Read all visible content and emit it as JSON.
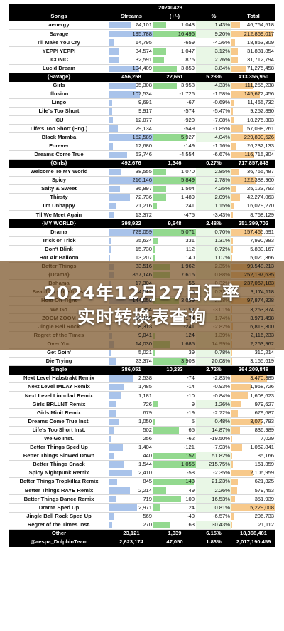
{
  "header": {
    "date": "20240428",
    "col_song": "Songs",
    "col_streams": "Streams",
    "col_change": "(+/-)",
    "col_pct": "%",
    "col_total": "Total"
  },
  "colors": {
    "header_bg": "#000000",
    "streams_bar": "#a9c3ea",
    "change_bar": "#93d98f",
    "total_bar": "#f7c98b"
  },
  "banner": {
    "line1": "2024年12月27日汇率",
    "line2": "实时转换表查询"
  },
  "rows": [
    {
      "kind": "song",
      "song": "aenergy",
      "streams": "74,101",
      "change": "1,043",
      "pct": "1.43%",
      "total": "46,764,518",
      "sv": 0.5,
      "cv": 0.3,
      "tv": 0.2
    },
    {
      "kind": "song",
      "song": "Savage",
      "streams": "195,788",
      "change": "16,496",
      "pct": "9.20%",
      "total": "212,869,017",
      "sv": 1.0,
      "cv": 1.0,
      "tv": 0.95
    },
    {
      "kind": "song",
      "song": "I'll Make You Cry",
      "streams": "14,795",
      "change": "-659",
      "pct": "-4.26%",
      "total": "18,853,309",
      "sv": 0.1,
      "cv": 0,
      "tv": 0.08
    },
    {
      "kind": "song",
      "song": "YEPPI YEPPI",
      "streams": "34,574",
      "change": "1,047",
      "pct": "3.12%",
      "total": "31,881,854",
      "sv": 0.22,
      "cv": 0.3,
      "tv": 0.14
    },
    {
      "kind": "song",
      "song": "ICONIC",
      "streams": "32,591",
      "change": "875",
      "pct": "2.76%",
      "total": "31,712,794",
      "sv": 0.21,
      "cv": 0.25,
      "tv": 0.14
    },
    {
      "kind": "song",
      "song": "Lucid Dream",
      "streams": "104,409",
      "change": "3,859",
      "pct": "3.84%",
      "total": "71,275,458",
      "sv": 0.68,
      "cv": 0.55,
      "tv": 0.32
    },
    {
      "kind": "hdr",
      "song": "{Savage}",
      "streams": "456,258",
      "change": "22,661",
      "pct": "5.23%",
      "total": "413,356,950"
    },
    {
      "kind": "song",
      "song": "Girls",
      "streams": "95,308",
      "change": "3,958",
      "pct": "4.33%",
      "total": "111,255,238",
      "sv": 0.62,
      "cv": 0.55,
      "tv": 0.5
    },
    {
      "kind": "song",
      "song": "Illusion",
      "streams": "107,534",
      "change": "-1,726",
      "pct": "-1.58%",
      "total": "145,672,456",
      "sv": 0.7,
      "cv": 0,
      "tv": 0.65
    },
    {
      "kind": "song",
      "song": "Lingo",
      "streams": "9,691",
      "change": "-67",
      "pct": "-0.69%",
      "total": "11,465,732",
      "sv": 0.06,
      "cv": 0,
      "tv": 0.05
    },
    {
      "kind": "song",
      "song": "Life's Too Short",
      "streams": "9,917",
      "change": "-574",
      "pct": "-5.47%",
      "total": "9,252,890",
      "sv": 0.06,
      "cv": 0,
      "tv": 0.04
    },
    {
      "kind": "song",
      "song": "ICU",
      "streams": "12,077",
      "change": "-920",
      "pct": "-7.08%",
      "total": "10,275,303",
      "sv": 0.08,
      "cv": 0,
      "tv": 0.05
    },
    {
      "kind": "song",
      "song": "Life's Too Short (Eng.)",
      "streams": "29,134",
      "change": "-549",
      "pct": "-1.85%",
      "total": "57,098,261",
      "sv": 0.19,
      "cv": 0,
      "tv": 0.26
    },
    {
      "kind": "song",
      "song": "Black Mamba",
      "streams": "152,589",
      "change": "5,927",
      "pct": "4.04%",
      "total": "229,890,526",
      "sv": 0.99,
      "cv": 0.8,
      "tv": 1.0
    },
    {
      "kind": "song",
      "song": "Forever",
      "streams": "12,680",
      "change": "-149",
      "pct": "-1.16%",
      "total": "26,232,133",
      "sv": 0.08,
      "cv": 0,
      "tv": 0.12
    },
    {
      "kind": "song",
      "song": "Dreams Come True",
      "streams": "63,746",
      "change": "-4,554",
      "pct": "-6.67%",
      "total": "116,715,304",
      "sv": 0.41,
      "cv": 0,
      "tv": 0.52
    },
    {
      "kind": "hdr",
      "song": "{Girls}",
      "streams": "492,676",
      "change": "1,346",
      "pct": "0.27%",
      "total": "717,857,843"
    },
    {
      "kind": "song",
      "song": "Welcome To MY World",
      "streams": "38,555",
      "change": "1,070",
      "pct": "2.85%",
      "total": "36,765,487",
      "sv": 0.25,
      "cv": 0.3,
      "tv": 0.16
    },
    {
      "kind": "song",
      "song": "Spicy",
      "streams": "216,146",
      "change": "5,849",
      "pct": "2.78%",
      "total": "122,388,960",
      "sv": 1.0,
      "cv": 1.0,
      "tv": 0.55
    },
    {
      "kind": "song",
      "song": "Salty & Sweet",
      "streams": "36,897",
      "change": "1,504",
      "pct": "4.25%",
      "total": "25,123,793",
      "sv": 0.24,
      "cv": 0.3,
      "tv": 0.11
    },
    {
      "kind": "song",
      "song": "Thirsty",
      "streams": "72,736",
      "change": "1,489",
      "pct": "2.09%",
      "total": "42,274,063",
      "sv": 0.47,
      "cv": 0.3,
      "tv": 0.19
    },
    {
      "kind": "song",
      "song": "I'm Unhappy",
      "streams": "21,216",
      "change": "241",
      "pct": "1.15%",
      "total": "16,079,270",
      "sv": 0.14,
      "cv": 0.08,
      "tv": 0.07
    },
    {
      "kind": "song",
      "song": "Til We Meet Again",
      "streams": "13,372",
      "change": "-475",
      "pct": "-3.43%",
      "total": "8,768,129",
      "sv": 0.09,
      "cv": 0,
      "tv": 0.04
    },
    {
      "kind": "hdr",
      "song": "{MY WORLD}",
      "streams": "398,922",
      "change": "9,648",
      "pct": "2.48%",
      "total": "251,399,702"
    },
    {
      "kind": "song",
      "song": "Drama",
      "streams": "729,059",
      "change": "5,071",
      "pct": "0.70%",
      "total": "157,465,591",
      "sv": 1.0,
      "cv": 1.0,
      "tv": 0.7
    },
    {
      "kind": "song",
      "song": "Trick or Trick",
      "streams": "25,634",
      "change": "331",
      "pct": "1.31%",
      "total": "7,990,983",
      "sv": 0.04,
      "cv": 0.1,
      "tv": 0.04
    },
    {
      "kind": "song",
      "song": "Don't Blink",
      "streams": "15,730",
      "change": "112",
      "pct": "0.72%",
      "total": "5,880,167",
      "sv": 0.03,
      "cv": 0.05,
      "tv": 0.03
    },
    {
      "kind": "song",
      "song": "Hot Air Balloon",
      "streams": "13,207",
      "change": "140",
      "pct": "1.07%",
      "total": "5,020,366",
      "sv": 0.02,
      "cv": 0.05,
      "tv": 0.02
    },
    {
      "kind": "song",
      "song": "Better Things",
      "streams": "83,516",
      "change": "1,962",
      "pct": "2.35%",
      "total": "99,548,213",
      "sv": 0.12,
      "cv": 0.4,
      "tv": 0.45
    },
    {
      "kind": "song",
      "song": "{Drama}",
      "streams": "867,146",
      "change": "7,616",
      "pct": "0.88%",
      "total": "252,197,635",
      "sv": 0.12,
      "cv": 0.4,
      "tv": 1.0
    },
    {
      "kind": "song",
      "song": "Bahama",
      "streams": "17,304",
      "change": "-56",
      "pct": "-0.32%",
      "total": "237,067,183",
      "sv": 0.03,
      "cv": 0,
      "tv": 1.0
    },
    {
      "kind": "song",
      "song": "Beautiful Christmas*",
      "streams": "4,512",
      "change": "15",
      "pct": "0.33%",
      "total": "3,174,118",
      "sv": 0.01,
      "cv": 0.02,
      "tv": 0.01
    },
    {
      "kind": "song",
      "song": "Hold On Tight",
      "streams": "144,059",
      "change": "3,059",
      "pct": "2.18%",
      "total": "97,874,828",
      "sv": 0.9,
      "cv": 0.6,
      "tv": 0.45
    },
    {
      "kind": "song",
      "song": "We Go",
      "streams": "6,354",
      "change": "-197",
      "pct": "-3.01%",
      "total": "3,263,874",
      "sv": 0.04,
      "cv": 0,
      "tv": 0.02
    },
    {
      "kind": "song",
      "song": "ZOOM ZOOM",
      "streams": "10,199",
      "change": "174",
      "pct": "1.74%",
      "total": "3,971,498",
      "sv": 0.06,
      "cv": 0.05,
      "tv": 0.02
    },
    {
      "kind": "song",
      "song": "Jingle Bell Rock",
      "streams": "8,313",
      "change": "-241",
      "pct": "-2.82%",
      "total": "6,819,300",
      "sv": 0.05,
      "cv": 0,
      "tv": 0.03
    },
    {
      "kind": "song",
      "song": "Regret of the Times",
      "streams": "9,041",
      "change": "124",
      "pct": "1.39%",
      "total": "2,116,233",
      "sv": 0.06,
      "cv": 0.05,
      "tv": 0.01
    },
    {
      "kind": "song",
      "song": "Over You",
      "streams": "14,030",
      "change": "1,685",
      "pct": "14.99%",
      "total": "2,263,962",
      "sv": 0.09,
      "cv": 0.4,
      "tv": 0.01
    },
    {
      "kind": "song",
      "song": "Get Goin'",
      "streams": "5,021",
      "change": "39",
      "pct": "0.78%",
      "total": "310,214",
      "sv": 0.03,
      "cv": 0.03,
      "tv": 0.005
    },
    {
      "kind": "song",
      "song": "Die Trying",
      "streams": "23,374",
      "change": "3,908",
      "pct": "20.08%",
      "total": "3,165,619",
      "sv": 0.15,
      "cv": 0.8,
      "tv": 0.02
    },
    {
      "kind": "hdr",
      "song": "Single",
      "streams": "386,051",
      "change": "10,233",
      "pct": "2.72%",
      "total": "364,209,848"
    },
    {
      "kind": "song",
      "song": "Next Level Habstrakt Remix",
      "streams": "2,538",
      "change": "-74",
      "pct": "-2.83%",
      "total": "3,470,385",
      "sv": 0.55,
      "cv": 0,
      "tv": 0.8
    },
    {
      "kind": "song",
      "song": "Next Level IMLAY Remix",
      "streams": "1,485",
      "change": "-14",
      "pct": "-0.93%",
      "total": "1,968,726",
      "sv": 0.32,
      "cv": 0,
      "tv": 0.45
    },
    {
      "kind": "song",
      "song": "Next Level Lionclad Remix",
      "streams": "1,181",
      "change": "-10",
      "pct": "-0.84%",
      "total": "1,608,623",
      "sv": 0.25,
      "cv": 0,
      "tv": 0.37
    },
    {
      "kind": "song",
      "song": "Girls BRLLNT Remix",
      "streams": "726",
      "change": "9",
      "pct": "1.26%",
      "total": "979,627",
      "sv": 0.15,
      "cv": 0.1,
      "tv": 0.22
    },
    {
      "kind": "song",
      "song": "Girls Minit Remix",
      "streams": "679",
      "change": "-19",
      "pct": "-2.72%",
      "total": "679,687",
      "sv": 0.14,
      "cv": 0,
      "tv": 0.15
    },
    {
      "kind": "song",
      "song": "Dreams Come True Inst.",
      "streams": "1,050",
      "change": "5",
      "pct": "0.48%",
      "total": "3,072,793",
      "sv": 0.22,
      "cv": 0.05,
      "tv": 0.7
    },
    {
      "kind": "song",
      "song": "Life's Too Short Inst.",
      "streams": "502",
      "change": "65",
      "pct": "14.87%",
      "total": "836,989",
      "sv": 0.1,
      "cv": 0.6,
      "tv": 0.19
    },
    {
      "kind": "song",
      "song": "We Go Inst.",
      "streams": "256",
      "change": "-62",
      "pct": "-19.50%",
      "total": "7,029",
      "sv": 0.05,
      "cv": 0,
      "tv": 0.01
    },
    {
      "kind": "song",
      "song": "Better Things Sped Up",
      "streams": "1,404",
      "change": "-121",
      "pct": "-7.93%",
      "total": "1,062,841",
      "sv": 0.3,
      "cv": 0,
      "tv": 0.24
    },
    {
      "kind": "song",
      "song": "Better Things Slowed Down",
      "streams": "440",
      "change": "157",
      "pct": "51.82%",
      "total": "85,166",
      "sv": 0.09,
      "cv": 1.0,
      "tv": 0.02
    },
    {
      "kind": "song",
      "song": "Better Things Snack",
      "streams": "1,544",
      "change": "1,055",
      "pct": "215.75%",
      "total": "161,359",
      "sv": 0.33,
      "cv": 1.0,
      "tv": 0.04
    },
    {
      "kind": "song",
      "song": "Spicy Nightpunk Remix",
      "streams": "2,410",
      "change": "-58",
      "pct": "-2.35%",
      "total": "2,106,959",
      "sv": 0.52,
      "cv": 0,
      "tv": 0.48
    },
    {
      "kind": "song",
      "song": "Better Things Tropkillaz Remix",
      "streams": "845",
      "change": "148",
      "pct": "21.23%",
      "total": "621,325",
      "sv": 0.18,
      "cv": 0.95,
      "tv": 0.14
    },
    {
      "kind": "song",
      "song": "Better Things RAYE Remix",
      "streams": "2,214",
      "change": "49",
      "pct": "2.26%",
      "total": "579,453",
      "sv": 0.47,
      "cv": 0.3,
      "tv": 0.13
    },
    {
      "kind": "song",
      "song": "Better Things Dance Remix",
      "streams": "719",
      "change": "100",
      "pct": "16.53%",
      "total": "351,939",
      "sv": 0.15,
      "cv": 0.65,
      "tv": 0.08
    },
    {
      "kind": "song",
      "song": "Drama Sped Up",
      "streams": "2,971",
      "change": "24",
      "pct": "0.81%",
      "total": "5,229,008",
      "sv": 0.63,
      "cv": 0.15,
      "tv": 1.0
    },
    {
      "kind": "song",
      "song": "Jingle Bell Rock Sped Up",
      "streams": "569",
      "change": "-40",
      "pct": "-6.57%",
      "total": "206,733",
      "sv": 0.12,
      "cv": 0,
      "tv": 0.05
    },
    {
      "kind": "song",
      "song": "Regret of the Times Inst.",
      "streams": "270",
      "change": "63",
      "pct": "30.43%",
      "total": "21,112",
      "sv": 0.06,
      "cv": 0.4,
      "tv": 0.01
    },
    {
      "kind": "hdr",
      "song": "Other",
      "streams": "23,121",
      "change": "1,339",
      "pct": "6.15%",
      "total": "18,368,481"
    },
    {
      "kind": "hdr",
      "song": "@aespa_DolphinTeam",
      "streams": "2,623,174",
      "change": "47,050",
      "pct": "1.83%",
      "total": "2,017,190,459"
    }
  ]
}
